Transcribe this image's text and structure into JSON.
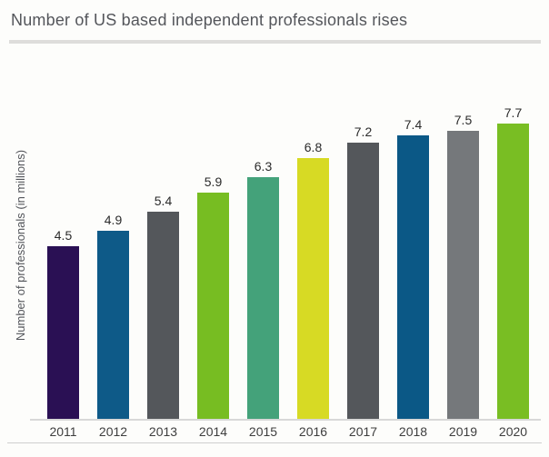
{
  "page": {
    "title": "Number of US based independent professionals rises"
  },
  "chart_data": {
    "type": "bar",
    "title": "Number of US based independent professionals rises",
    "xlabel": "",
    "ylabel": "Number of professionals (in millions)",
    "categories": [
      "2011",
      "2012",
      "2013",
      "2014",
      "2015",
      "2016",
      "2017",
      "2018",
      "2019",
      "2020"
    ],
    "values": [
      4.5,
      4.9,
      5.4,
      5.9,
      6.3,
      6.8,
      7.2,
      7.4,
      7.5,
      7.7
    ],
    "value_labels": [
      "4.5",
      "4.9",
      "5.4",
      "5.9",
      "6.3",
      "6.8",
      "7.2",
      "7.4",
      "7.5",
      "7.7"
    ],
    "bar_colors": [
      "#2a1054",
      "#0e5a88",
      "#54575b",
      "#77bd22",
      "#44a27a",
      "#d7da24",
      "#54575b",
      "#0b5886",
      "#75787b",
      "#79be23"
    ],
    "ylim": [
      0,
      8
    ],
    "grid": false,
    "legend": "none",
    "data_labels": "above bars"
  },
  "colors": {
    "title_text": "#54565b",
    "axis_line": "#d8d8d8",
    "divider": "#dedddb",
    "label_text": "#2b2b2b",
    "tick_text": "#3e3e3e",
    "background": "#fdfdfb"
  }
}
